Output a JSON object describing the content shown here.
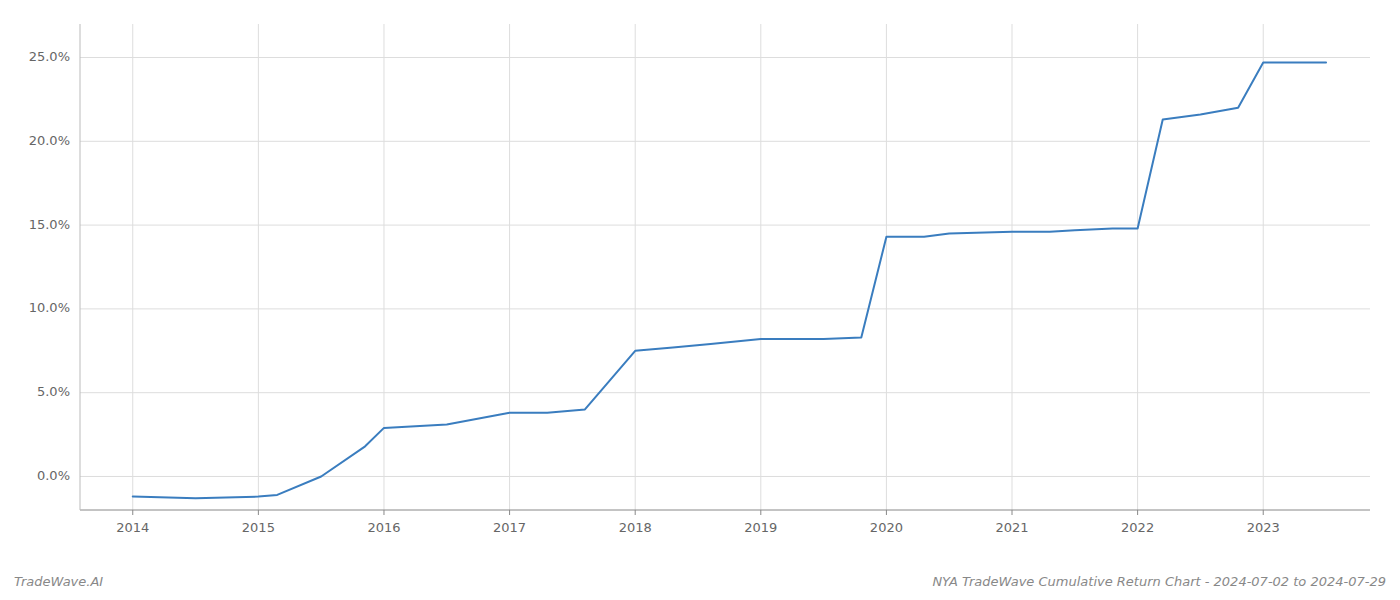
{
  "chart_data": {
    "type": "line",
    "title": "NYA TradeWave Cumulative Return Chart - 2024-07-02 to 2024-07-29",
    "annotations": [
      "TradeWave.AI"
    ],
    "color": "#3a7dbf",
    "x": [
      2014.0,
      2014.5,
      2015.0,
      2015.15,
      2015.5,
      2015.85,
      2016.0,
      2016.5,
      2017.0,
      2017.3,
      2017.6,
      2018.0,
      2018.3,
      2018.6,
      2019.0,
      2019.5,
      2019.8,
      2020.0,
      2020.3,
      2020.5,
      2021.0,
      2021.3,
      2021.5,
      2021.8,
      2022.0,
      2022.2,
      2022.5,
      2022.8,
      2023.0,
      2023.5
    ],
    "values": [
      -0.012,
      -0.013,
      -0.012,
      -0.011,
      0.0,
      0.018,
      0.029,
      0.031,
      0.038,
      0.038,
      0.04,
      0.075,
      0.077,
      0.079,
      0.082,
      0.082,
      0.083,
      0.143,
      0.143,
      0.145,
      0.146,
      0.146,
      0.147,
      0.148,
      0.148,
      0.213,
      0.216,
      0.22,
      0.247,
      0.247
    ],
    "xlim": [
      2013.58,
      2023.85
    ],
    "ylim": [
      -0.02,
      0.27
    ],
    "xticks": [
      2014,
      2015,
      2016,
      2017,
      2018,
      2019,
      2020,
      2021,
      2022,
      2023
    ],
    "yticks": [
      {
        "value": 0.0,
        "label": "0.0%"
      },
      {
        "value": 0.05,
        "label": "5.0%"
      },
      {
        "value": 0.1,
        "label": "10.0%"
      },
      {
        "value": 0.15,
        "label": "15.0%"
      },
      {
        "value": 0.2,
        "label": "20.0%"
      },
      {
        "value": 0.25,
        "label": "25.0%"
      }
    ],
    "grid": true
  }
}
